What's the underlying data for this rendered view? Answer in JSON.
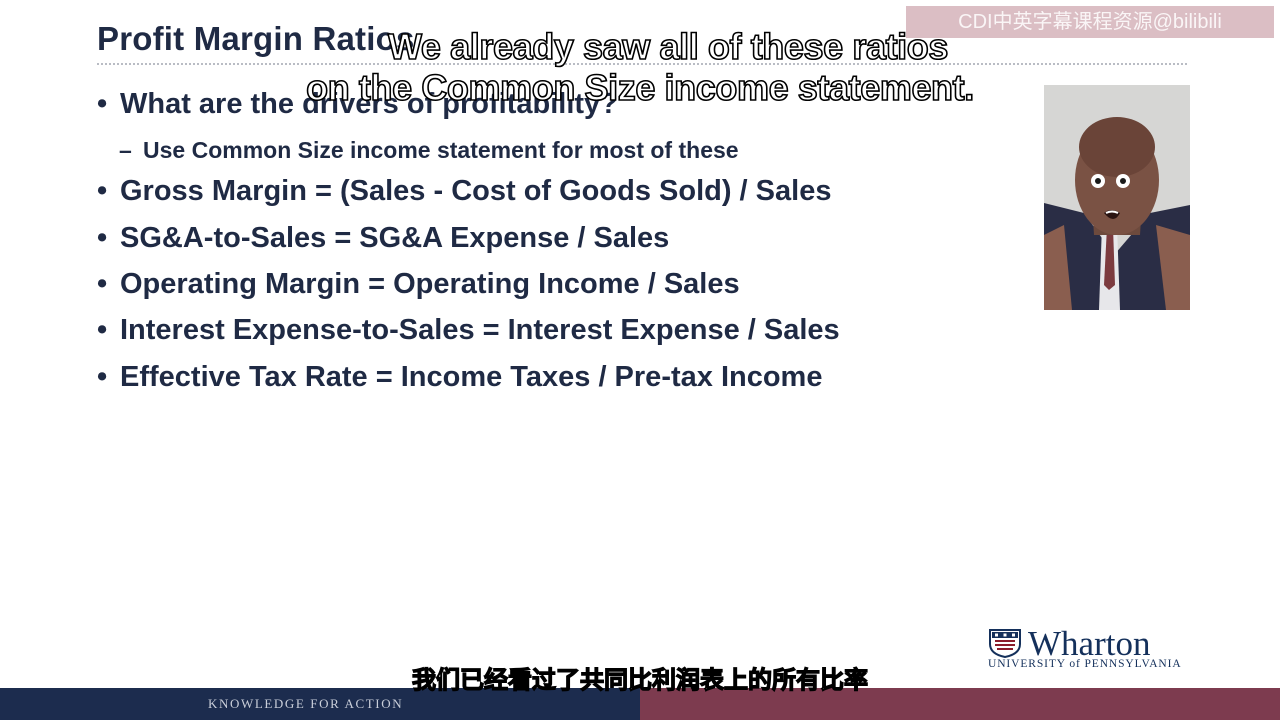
{
  "slide": {
    "title": "Profit Margin Ratios",
    "bullets": [
      {
        "text": "What are the drivers of profitability?"
      },
      {
        "text": "Gross Margin = (Sales - Cost of Goods Sold) / Sales"
      },
      {
        "text": "SG&A-to-Sales = SG&A Expense / Sales"
      },
      {
        "text": "Operating Margin = Operating Income / Sales"
      },
      {
        "text": "Interest Expense-to-Sales = Interest Expense / Sales"
      },
      {
        "text": "Effective Tax Rate = Income Taxes / Pre-tax Income"
      }
    ],
    "sub_bullet": "Use Common Size income statement for most of these",
    "bullet_glyph": "•",
    "sub_bullet_glyph": "–"
  },
  "captions": {
    "english_line1": "We already saw all of these ratios",
    "english_line2": "on the Common Size income statement.",
    "chinese": "我们已经看过了共同比利润表上的所有比率"
  },
  "watermark": "CDI中英字幕课程资源@bilibili",
  "branding": {
    "logo_word": "Wharton",
    "logo_subtitle": "UNIVERSITY of PENNSYLVANIA",
    "tagline": "KNOWLEDGE FOR ACTION",
    "navy": "#1c2c4e",
    "maroon": "#7d3b4f"
  },
  "presenter": {
    "icon": "presenter-avatar"
  }
}
